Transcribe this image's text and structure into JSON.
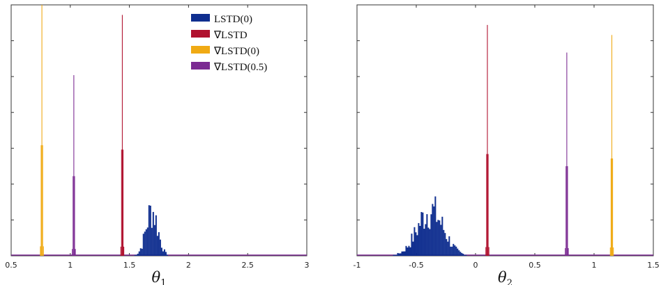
{
  "chart_data": [
    {
      "type": "histogram",
      "xlabel": "θ1",
      "xlabel_base": "θ",
      "xlabel_sub": "1",
      "xlim": [
        0.5,
        3
      ],
      "xticks": [
        "0.5",
        "1",
        "1.5",
        "2",
        "2.5",
        "3"
      ],
      "ylim": [
        0,
        1
      ],
      "y_tick_labels_shown": false,
      "legend_position": "top-right",
      "series": [
        {
          "name": "LSTD(0)",
          "color": "#0f2e8f",
          "center": 1.69,
          "spread": 0.05,
          "peak": 0.18
        },
        {
          "name": "∇LSTD",
          "color": "#b0112e",
          "center": 1.44,
          "spread": 0.005,
          "peak": 0.96
        },
        {
          "name": "∇LSTD(0)",
          "color": "#f0aa14",
          "center": 0.76,
          "spread": 0.005,
          "peak": 1.0
        },
        {
          "name": "∇LSTD(0.5)",
          "color": "#7b2a92",
          "center": 1.03,
          "spread": 0.005,
          "peak": 0.72
        }
      ]
    },
    {
      "type": "histogram",
      "xlabel": "θ2",
      "xlabel_base": "θ",
      "xlabel_sub": "2",
      "xlim": [
        -1,
        1.5
      ],
      "xticks": [
        "-1",
        "-0.5",
        "0",
        "0.5",
        "1",
        "1.5"
      ],
      "ylim": [
        0,
        1
      ],
      "y_tick_labels_shown": false,
      "series": [
        {
          "name": "LSTD(0)",
          "color": "#0f2e8f",
          "center": -0.38,
          "spread": 0.11,
          "peak": 0.18
        },
        {
          "name": "∇LSTD",
          "color": "#b0112e",
          "center": 0.1,
          "spread": 0.005,
          "peak": 0.92
        },
        {
          "name": "∇LSTD(0)",
          "color": "#f0aa14",
          "center": 1.15,
          "spread": 0.005,
          "peak": 0.88
        },
        {
          "name": "∇LSTD(0.5)",
          "color": "#7b2a92",
          "center": 0.77,
          "spread": 0.005,
          "peak": 0.81
        }
      ]
    }
  ]
}
